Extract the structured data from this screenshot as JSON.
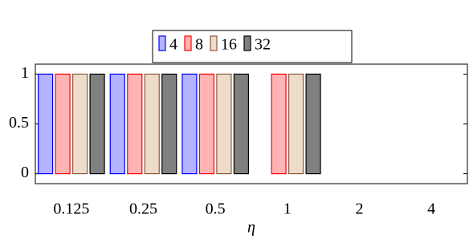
{
  "chart_data": {
    "type": "bar",
    "x_label": "η",
    "categories": [
      "0.125",
      "0.25",
      "0.5",
      "1",
      "2",
      "4"
    ],
    "series": [
      {
        "name": "4",
        "color": "#0000ff",
        "fill": "#b3b3ff",
        "values": [
          1,
          1,
          1,
          0,
          0,
          0
        ]
      },
      {
        "name": "8",
        "color": "#ff0000",
        "fill": "#ffb3b3",
        "values": [
          1,
          1,
          1,
          1,
          0,
          0
        ]
      },
      {
        "name": "16",
        "color": "#8b5a3c",
        "fill": "#eedccb",
        "values": [
          1,
          1,
          1,
          1,
          0,
          0
        ]
      },
      {
        "name": "32",
        "color": "#000000",
        "fill": "#808080",
        "values": [
          1,
          1,
          1,
          1,
          0,
          0
        ]
      }
    ],
    "ylim": [
      -0.1,
      1.1
    ],
    "yticks": [
      0,
      0.5,
      1
    ],
    "grid": false,
    "legend": "top"
  }
}
